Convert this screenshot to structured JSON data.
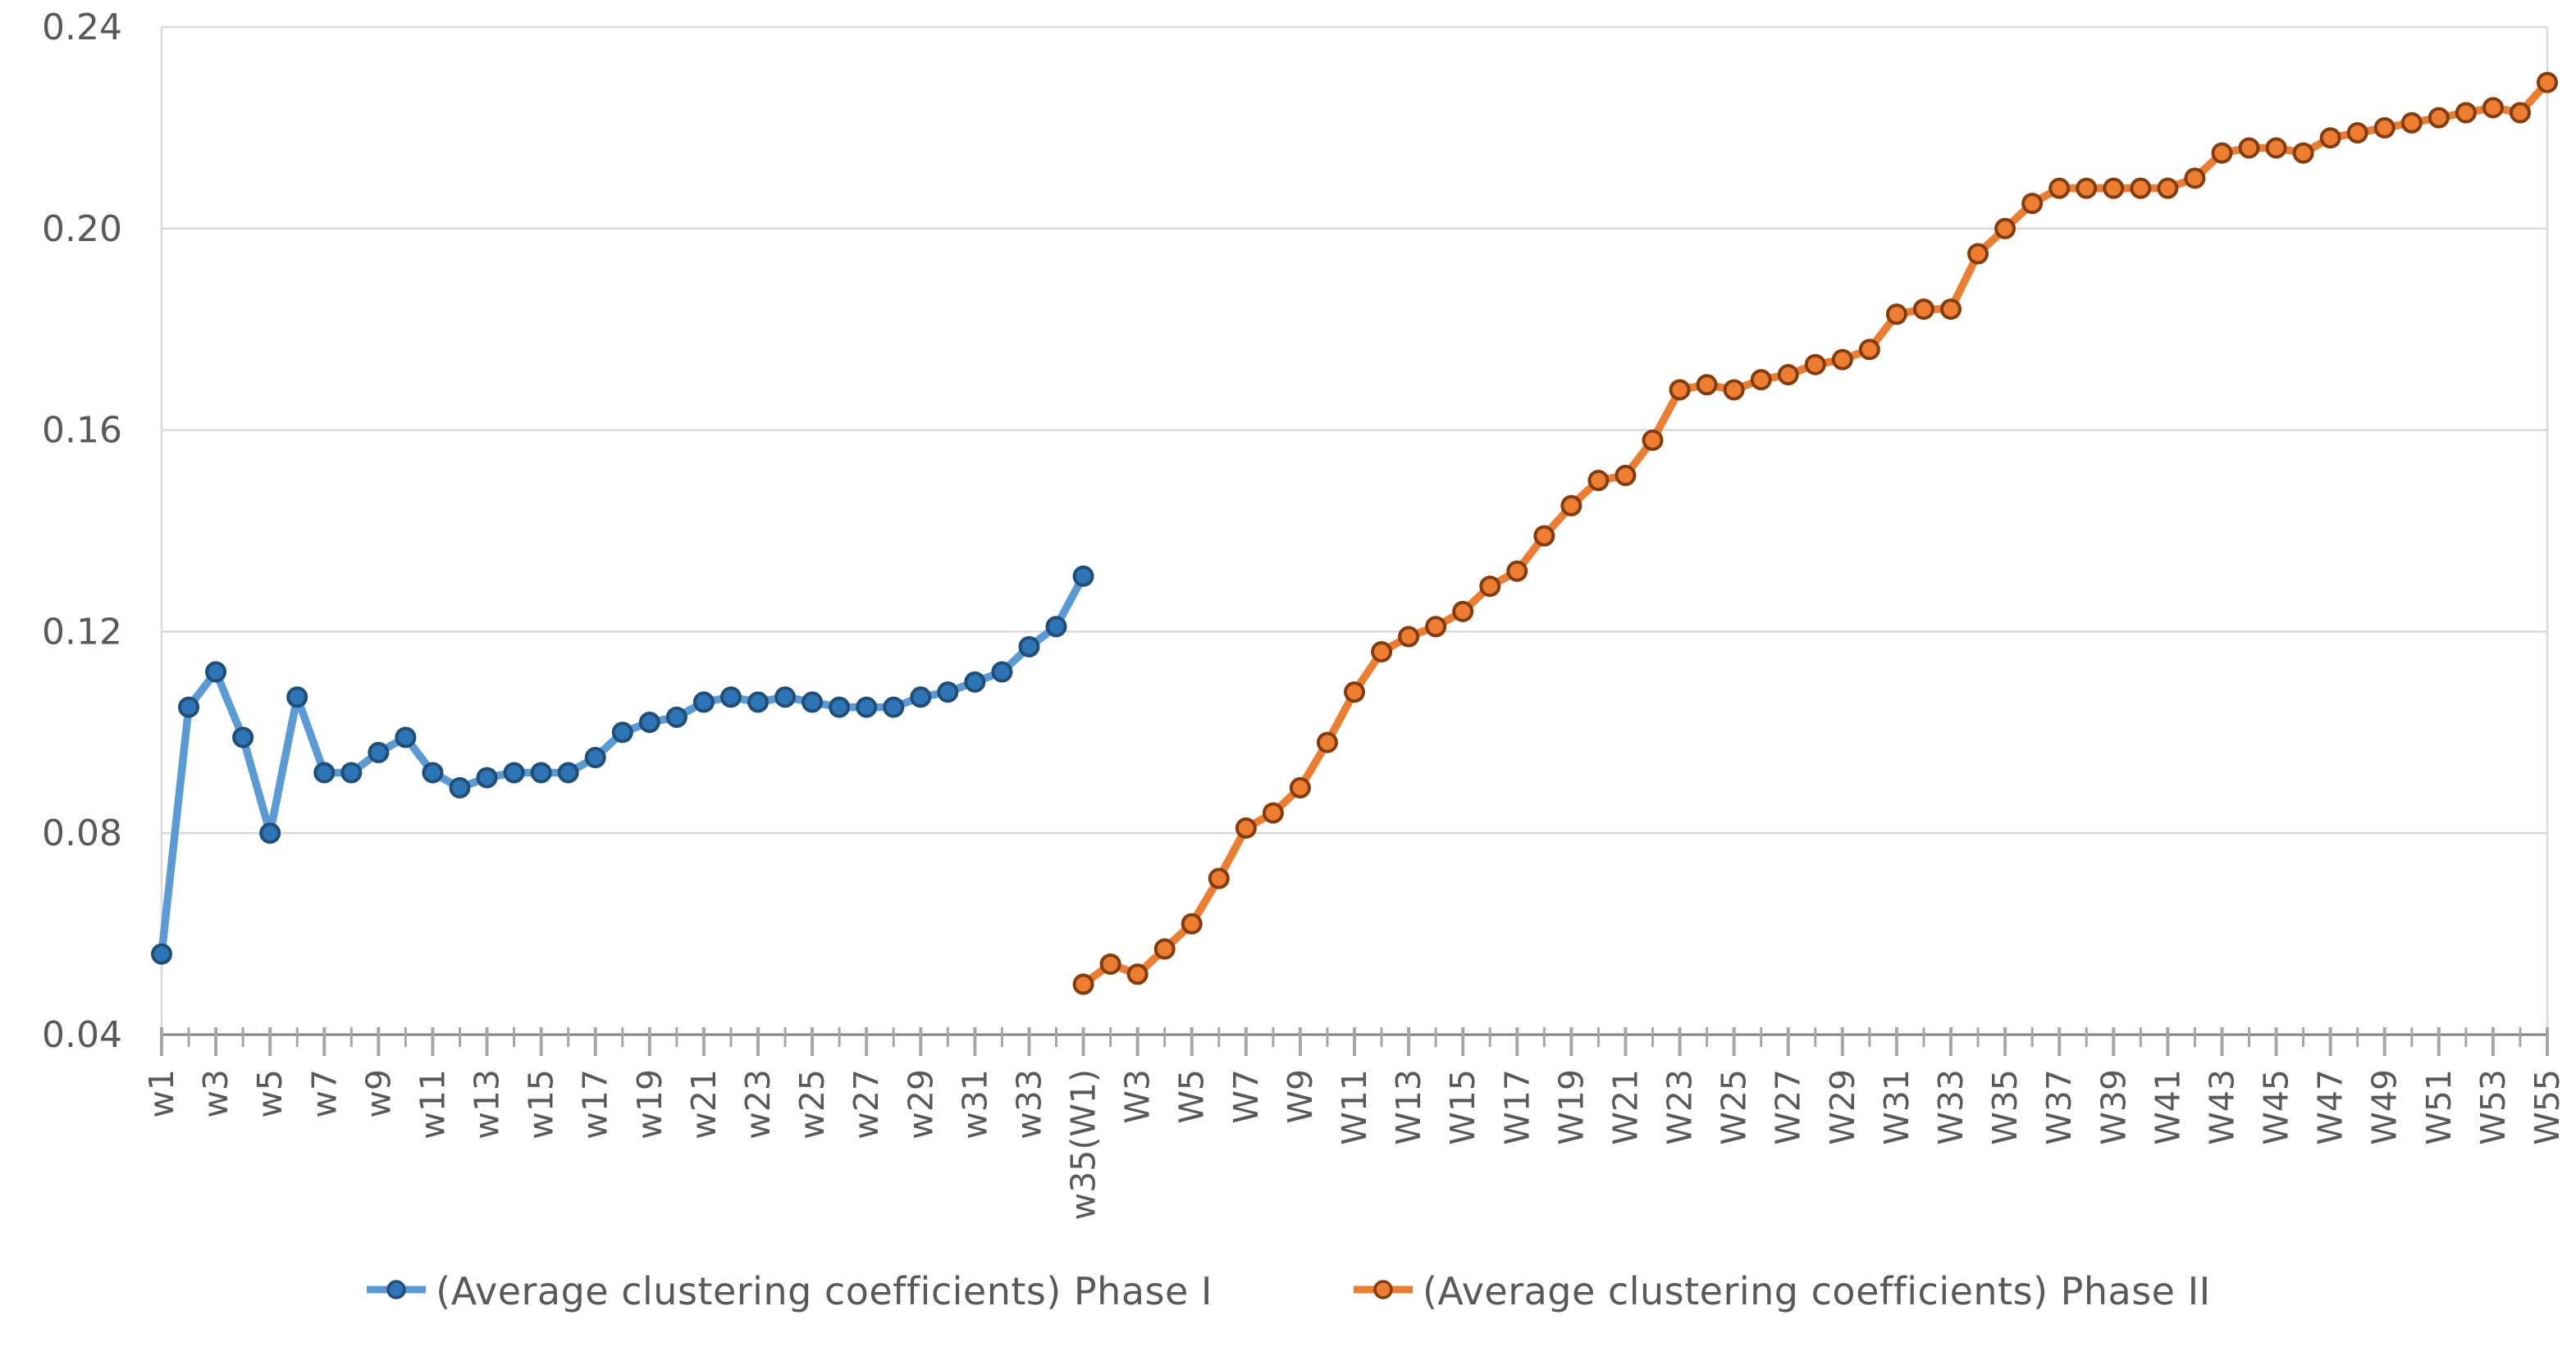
{
  "chart_data": {
    "type": "line",
    "title": "",
    "grid": true,
    "legend_position": "bottom",
    "y_axis": {
      "min": 0.04,
      "max": 0.24,
      "tick_step": 0.04,
      "tick_labels": [
        "0.04",
        "0.08",
        "0.12",
        "0.16",
        "0.20",
        "0.24"
      ]
    },
    "x_axis": {
      "total_positions": 89,
      "note": "Phase I weeks w1-w35 occupy positions 1-35; Phase II weeks W1-W55 occupy positions 35-89 (w35 coincides with W1)",
      "tick_labels": [
        {
          "pos": 1,
          "text": "w1"
        },
        {
          "pos": 3,
          "text": "w3"
        },
        {
          "pos": 5,
          "text": "w5"
        },
        {
          "pos": 7,
          "text": "w7"
        },
        {
          "pos": 9,
          "text": "w9"
        },
        {
          "pos": 11,
          "text": "w11"
        },
        {
          "pos": 13,
          "text": "w13"
        },
        {
          "pos": 15,
          "text": "w15"
        },
        {
          "pos": 17,
          "text": "w17"
        },
        {
          "pos": 19,
          "text": "w19"
        },
        {
          "pos": 21,
          "text": "w21"
        },
        {
          "pos": 23,
          "text": "w23"
        },
        {
          "pos": 25,
          "text": "w25"
        },
        {
          "pos": 27,
          "text": "w27"
        },
        {
          "pos": 29,
          "text": "w29"
        },
        {
          "pos": 31,
          "text": "w31"
        },
        {
          "pos": 33,
          "text": "w33"
        },
        {
          "pos": 35,
          "text": "w35(W1)"
        },
        {
          "pos": 37,
          "text": "W3"
        },
        {
          "pos": 39,
          "text": "W5"
        },
        {
          "pos": 41,
          "text": "W7"
        },
        {
          "pos": 43,
          "text": "W9"
        },
        {
          "pos": 45,
          "text": "W11"
        },
        {
          "pos": 47,
          "text": "W13"
        },
        {
          "pos": 49,
          "text": "W15"
        },
        {
          "pos": 51,
          "text": "W17"
        },
        {
          "pos": 53,
          "text": "W19"
        },
        {
          "pos": 55,
          "text": "W21"
        },
        {
          "pos": 57,
          "text": "W23"
        },
        {
          "pos": 59,
          "text": "W25"
        },
        {
          "pos": 61,
          "text": "W27"
        },
        {
          "pos": 63,
          "text": "W29"
        },
        {
          "pos": 65,
          "text": "W31"
        },
        {
          "pos": 67,
          "text": "W33"
        },
        {
          "pos": 69,
          "text": "W35"
        },
        {
          "pos": 71,
          "text": "W37"
        },
        {
          "pos": 73,
          "text": "W39"
        },
        {
          "pos": 75,
          "text": "W41"
        },
        {
          "pos": 77,
          "text": "W43"
        },
        {
          "pos": 79,
          "text": "W45"
        },
        {
          "pos": 81,
          "text": "W47"
        },
        {
          "pos": 83,
          "text": "W49"
        },
        {
          "pos": 85,
          "text": "W51"
        },
        {
          "pos": 87,
          "text": "W53"
        },
        {
          "pos": 89,
          "text": "W55"
        }
      ]
    },
    "series": [
      {
        "name": "(Average clustering coefficients) Phase I",
        "line_color": "#5B9BD5",
        "marker_fill": "#2E75B6",
        "marker_stroke": "#1F4E79",
        "start_pos": 1,
        "weeks": [
          "w1",
          "w2",
          "w3",
          "w4",
          "w5",
          "w6",
          "w7",
          "w8",
          "w9",
          "w10",
          "w11",
          "w12",
          "w13",
          "w14",
          "w15",
          "w16",
          "w17",
          "w18",
          "w19",
          "w20",
          "w21",
          "w22",
          "w23",
          "w24",
          "w25",
          "w26",
          "w27",
          "w28",
          "w29",
          "w30",
          "w31",
          "w32",
          "w33",
          "w34",
          "w35"
        ],
        "values": [
          0.056,
          0.105,
          0.112,
          0.099,
          0.08,
          0.107,
          0.092,
          0.092,
          0.096,
          0.099,
          0.092,
          0.089,
          0.091,
          0.092,
          0.092,
          0.092,
          0.095,
          0.1,
          0.102,
          0.103,
          0.106,
          0.107,
          0.106,
          0.107,
          0.106,
          0.105,
          0.105,
          0.105,
          0.107,
          0.108,
          0.11,
          0.112,
          0.117,
          0.121,
          0.131
        ]
      },
      {
        "name": "(Average clustering coefficients) Phase II",
        "line_color": "#ED7D31",
        "marker_fill": "#ED7D31",
        "marker_stroke": "#843C0C",
        "start_pos": 35,
        "weeks": [
          "W1",
          "W2",
          "W3",
          "W4",
          "W5",
          "W6",
          "W7",
          "W8",
          "W9",
          "W10",
          "W11",
          "W12",
          "W13",
          "W14",
          "W15",
          "W16",
          "W17",
          "W18",
          "W19",
          "W20",
          "W21",
          "W22",
          "W23",
          "W24",
          "W25",
          "W26",
          "W27",
          "W28",
          "W29",
          "W30",
          "W31",
          "W32",
          "W33",
          "W34",
          "W35",
          "W36",
          "W37",
          "W38",
          "W39",
          "W40",
          "W41",
          "W42",
          "W43",
          "W44",
          "W45",
          "W46",
          "W47",
          "W48",
          "W49",
          "W50",
          "W51",
          "W52",
          "W53",
          "W54",
          "W55"
        ],
        "values": [
          0.05,
          0.054,
          0.052,
          0.057,
          0.062,
          0.071,
          0.081,
          0.084,
          0.089,
          0.098,
          0.108,
          0.116,
          0.119,
          0.121,
          0.124,
          0.129,
          0.132,
          0.139,
          0.145,
          0.15,
          0.151,
          0.158,
          0.168,
          0.169,
          0.168,
          0.17,
          0.171,
          0.173,
          0.174,
          0.176,
          0.183,
          0.184,
          0.184,
          0.195,
          0.2,
          0.205,
          0.208,
          0.208,
          0.208,
          0.208,
          0.208,
          0.21,
          0.215,
          0.216,
          0.216,
          0.215,
          0.218,
          0.219,
          0.22,
          0.221,
          0.222,
          0.223,
          0.224,
          0.223,
          0.229
        ]
      }
    ]
  },
  "legend": {
    "items": [
      {
        "label": "(Average clustering coefficients) Phase I"
      },
      {
        "label": "(Average clustering coefficients) Phase II"
      }
    ]
  },
  "colors": {
    "gridline": "#D9D9D9",
    "plot_border": "#D9D9D9",
    "axis_line": "#808080",
    "tick": "#A6A6A6",
    "label_text": "#595959",
    "background": "#FFFFFF",
    "phase1_line": "#5B9BD5",
    "phase1_marker": "#2E75B6",
    "phase1_marker_border": "#1F4E79",
    "phase2_line": "#ED7D31",
    "phase2_marker": "#ED7D31",
    "phase2_marker_border": "#843C0C"
  }
}
